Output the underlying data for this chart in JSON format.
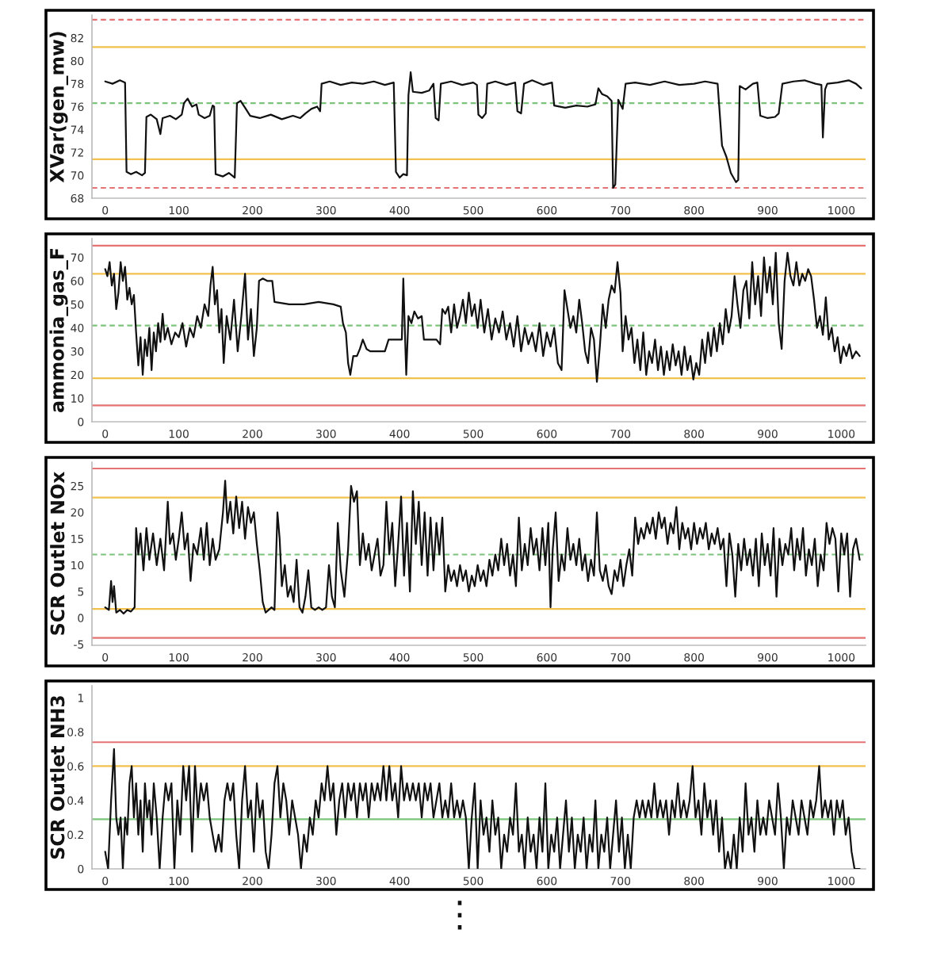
{
  "chart_data": [
    {
      "type": "line",
      "ylabel": "XVar(gen_mw)",
      "color": "#111111",
      "xlim": [
        -18,
        1033
      ],
      "ylim": [
        68,
        84
      ],
      "xticks": [
        0,
        100,
        200,
        300,
        400,
        500,
        600,
        700,
        800,
        900,
        1000
      ],
      "yticks": [
        68,
        70,
        72,
        74,
        76,
        78,
        80,
        82
      ],
      "ref_lines": [
        {
          "axis": "y",
          "value": 83.6,
          "color": "#e57373",
          "line_style": "dashed"
        },
        {
          "axis": "y",
          "value": 81.2,
          "color": "#f2c14e",
          "line_style": "solid"
        },
        {
          "axis": "y",
          "value": 76.3,
          "color": "#7cc47c",
          "line_style": "dashed"
        },
        {
          "axis": "y",
          "value": 71.4,
          "color": "#f2c14e",
          "line_style": "solid"
        },
        {
          "axis": "y",
          "value": 68.9,
          "color": "#e57373",
          "line_style": "dashed"
        }
      ],
      "x": [
        0,
        10,
        20,
        27,
        29,
        35,
        42,
        50,
        54,
        56,
        62,
        70,
        75,
        78,
        88,
        96,
        104,
        107,
        112,
        118,
        124,
        127,
        135,
        142,
        146,
        148,
        150,
        160,
        168,
        176,
        179,
        184,
        190,
        197,
        210,
        225,
        240,
        255,
        265,
        272,
        280,
        288,
        292,
        294,
        305,
        320,
        335,
        350,
        365,
        380,
        392,
        395,
        400,
        405,
        410,
        412,
        415,
        418,
        430,
        440,
        446,
        449,
        453,
        456,
        470,
        485,
        500,
        505,
        507,
        512,
        517,
        519,
        530,
        545,
        557,
        560,
        565,
        569,
        580,
        595,
        607,
        610,
        625,
        640,
        655,
        666,
        670,
        675,
        682,
        688,
        690,
        693,
        697,
        703,
        707,
        720,
        740,
        760,
        780,
        800,
        815,
        832,
        838,
        844,
        850,
        857,
        860,
        862,
        870,
        880,
        886,
        890,
        900,
        910,
        915,
        920,
        935,
        950,
        965,
        973,
        975,
        978,
        981,
        995,
        1010,
        1020,
        1027
      ],
      "values": [
        78.2,
        78.0,
        78.3,
        78.1,
        70.3,
        70.1,
        70.3,
        70.0,
        70.2,
        75.1,
        75.3,
        74.9,
        73.6,
        75.0,
        75.2,
        74.9,
        75.3,
        76.3,
        76.7,
        76.0,
        76.2,
        75.3,
        75.0,
        75.2,
        76.1,
        76.0,
        70.1,
        69.9,
        70.2,
        69.8,
        76.3,
        76.5,
        75.9,
        75.2,
        75.0,
        75.3,
        74.9,
        75.2,
        75.0,
        75.4,
        75.8,
        76.0,
        75.6,
        78.0,
        78.2,
        77.9,
        78.1,
        78.0,
        78.2,
        77.9,
        78.1,
        70.3,
        69.8,
        70.1,
        70.0,
        77.0,
        79.0,
        77.3,
        77.2,
        77.4,
        78.0,
        75.0,
        74.8,
        78.0,
        78.2,
        77.9,
        78.1,
        77.9,
        75.3,
        75.0,
        75.4,
        78.0,
        78.2,
        77.9,
        78.1,
        75.6,
        75.4,
        78.0,
        78.3,
        77.9,
        78.1,
        76.1,
        75.9,
        76.1,
        76.0,
        76.2,
        77.6,
        77.1,
        76.9,
        76.5,
        68.9,
        69.2,
        76.6,
        75.8,
        78.0,
        78.1,
        77.9,
        78.2,
        77.9,
        78.0,
        78.2,
        78.0,
        72.6,
        71.6,
        70.2,
        69.4,
        69.6,
        77.8,
        77.5,
        78.0,
        78.1,
        75.2,
        75.0,
        75.1,
        75.4,
        78.0,
        78.2,
        78.3,
        78.0,
        77.9,
        73.3,
        77.5,
        78.0,
        78.1,
        78.3,
        78.0,
        77.6
      ]
    },
    {
      "type": "line",
      "ylabel": "ammonia_gas_F",
      "color": "#111111",
      "xlim": [
        -18,
        1033
      ],
      "ylim": [
        0,
        78
      ],
      "xticks": [
        0,
        100,
        200,
        300,
        400,
        500,
        600,
        700,
        800,
        900,
        1000
      ],
      "yticks": [
        0,
        10,
        20,
        30,
        40,
        50,
        60,
        70
      ],
      "ref_lines": [
        {
          "axis": "y",
          "value": 75,
          "color": "#e57373",
          "line_style": "solid"
        },
        {
          "axis": "y",
          "value": 63,
          "color": "#f2c14e",
          "line_style": "solid"
        },
        {
          "axis": "y",
          "value": 41,
          "color": "#7cc47c",
          "line_style": "dashed"
        },
        {
          "axis": "y",
          "value": 18.5,
          "color": "#f2c14e",
          "line_style": "solid"
        },
        {
          "axis": "y",
          "value": 7,
          "color": "#e57373",
          "line_style": "solid"
        }
      ],
      "x": [
        0,
        3,
        6,
        9,
        12,
        15,
        18,
        21,
        24,
        27,
        30,
        33,
        36,
        39,
        42,
        45,
        48,
        51,
        54,
        57,
        60,
        63,
        66,
        69,
        72,
        75,
        78,
        81,
        85,
        90,
        95,
        100,
        105,
        110,
        115,
        120,
        125,
        130,
        135,
        140,
        143,
        146,
        149,
        152,
        155,
        158,
        161,
        165,
        170,
        175,
        180,
        185,
        190,
        194,
        198,
        202,
        206,
        209,
        214,
        220,
        227,
        230,
        250,
        270,
        290,
        310,
        320,
        323,
        327,
        330,
        333,
        337,
        342,
        346,
        350,
        355,
        360,
        380,
        385,
        403,
        405,
        407,
        409,
        412,
        416,
        420,
        425,
        430,
        433,
        450,
        455,
        458,
        462,
        466,
        470,
        474,
        478,
        482,
        486,
        490,
        494,
        498,
        502,
        506,
        510,
        515,
        520,
        525,
        530,
        535,
        540,
        545,
        550,
        555,
        560,
        565,
        570,
        575,
        580,
        585,
        590,
        595,
        600,
        605,
        610,
        615,
        620,
        624,
        628,
        632,
        636,
        640,
        644,
        648,
        652,
        656,
        660,
        664,
        668,
        672,
        676,
        680,
        684,
        688,
        692,
        696,
        700,
        703,
        707,
        711,
        715,
        719,
        723,
        727,
        731,
        735,
        739,
        743,
        747,
        751,
        755,
        759,
        763,
        767,
        771,
        775,
        779,
        783,
        787,
        791,
        795,
        799,
        803,
        807,
        811,
        815,
        819,
        823,
        827,
        831,
        835,
        839,
        843,
        847,
        851,
        855,
        859,
        863,
        867,
        871,
        875,
        879,
        883,
        887,
        891,
        895,
        899,
        903,
        907,
        911,
        915,
        919,
        923,
        927,
        931,
        935,
        939,
        943,
        947,
        951,
        955,
        959,
        963,
        967,
        971,
        975,
        979,
        983,
        987,
        991,
        995,
        999,
        1003,
        1007,
        1011,
        1015,
        1020,
        1025
      ],
      "values": [
        65,
        62,
        68,
        58,
        63,
        48,
        55,
        68,
        60,
        66,
        52,
        57,
        50,
        54,
        38,
        24,
        36,
        20,
        35,
        28,
        40,
        22,
        38,
        30,
        42,
        34,
        46,
        35,
        40,
        33,
        38,
        36,
        42,
        32,
        40,
        36,
        45,
        40,
        50,
        45,
        58,
        66,
        50,
        56,
        38,
        48,
        25,
        45,
        35,
        52,
        30,
        45,
        63,
        35,
        48,
        28,
        40,
        60,
        61,
        60,
        60,
        51,
        50,
        50,
        51,
        50,
        49,
        42,
        38,
        25,
        20,
        28,
        28,
        31,
        35,
        31,
        30,
        30,
        35,
        35,
        61,
        40,
        20,
        45,
        42,
        47,
        44,
        45,
        35,
        35,
        33,
        48,
        46,
        49,
        38,
        50,
        40,
        45,
        52,
        42,
        55,
        45,
        50,
        40,
        52,
        38,
        48,
        35,
        44,
        38,
        47,
        35,
        42,
        32,
        45,
        30,
        40,
        33,
        38,
        30,
        42,
        28,
        38,
        32,
        40,
        25,
        22,
        56,
        48,
        40,
        45,
        38,
        52,
        42,
        30,
        25,
        40,
        35,
        17,
        32,
        50,
        40,
        52,
        58,
        55,
        68,
        55,
        30,
        45,
        35,
        40,
        25,
        35,
        22,
        38,
        20,
        30,
        25,
        35,
        22,
        32,
        20,
        30,
        22,
        33,
        24,
        30,
        20,
        32,
        22,
        28,
        18,
        25,
        20,
        35,
        25,
        38,
        28,
        40,
        30,
        42,
        33,
        48,
        38,
        45,
        62,
        50,
        40,
        56,
        60,
        44,
        68,
        50,
        62,
        45,
        70,
        55,
        66,
        50,
        72,
        42,
        31,
        60,
        72,
        62,
        58,
        68,
        58,
        63,
        60,
        65,
        62,
        52,
        40,
        45,
        37,
        53,
        35,
        40,
        30,
        36,
        25,
        32,
        28,
        33,
        27,
        30,
        28
      ]
    },
    {
      "type": "line",
      "ylabel": "SCR Outlet NOx",
      "color": "#111111",
      "xlim": [
        -18,
        1033
      ],
      "ylim": [
        -5.2,
        29.5
      ],
      "xticks": [
        0,
        100,
        200,
        300,
        400,
        500,
        600,
        700,
        800,
        900,
        1000
      ],
      "yticks": [
        -5,
        0,
        5,
        10,
        15,
        20,
        25
      ],
      "ref_lines": [
        {
          "axis": "y",
          "value": 28.3,
          "color": "#e57373",
          "line_style": "solid"
        },
        {
          "axis": "y",
          "value": 22.8,
          "color": "#f2c14e",
          "line_style": "solid"
        },
        {
          "axis": "y",
          "value": 12,
          "color": "#7cc47c",
          "line_style": "dashed"
        },
        {
          "axis": "y",
          "value": 1.7,
          "color": "#f2c14e",
          "line_style": "solid"
        },
        {
          "axis": "y",
          "value": -3.8,
          "color": "#e57373",
          "line_style": "solid"
        }
      ],
      "x": [
        0,
        5,
        8,
        10,
        12,
        15,
        20,
        25,
        30,
        35,
        40,
        42,
        45,
        48,
        52,
        56,
        60,
        65,
        70,
        75,
        80,
        85,
        88,
        92,
        96,
        100,
        104,
        108,
        112,
        116,
        120,
        125,
        130,
        134,
        138,
        142,
        146,
        150,
        155,
        160,
        163,
        166,
        170,
        174,
        178,
        182,
        186,
        190,
        194,
        198,
        202,
        206,
        210,
        214,
        218,
        222,
        226,
        230,
        234,
        237,
        240,
        244,
        248,
        252,
        256,
        260,
        264,
        268,
        272,
        276,
        280,
        285,
        290,
        295,
        300,
        304,
        308,
        312,
        316,
        320,
        325,
        330,
        334,
        338,
        342,
        346,
        350,
        354,
        358,
        362,
        366,
        370,
        374,
        378,
        382,
        386,
        390,
        394,
        398,
        402,
        406,
        410,
        414,
        418,
        422,
        426,
        430,
        434,
        438,
        442,
        446,
        450,
        454,
        458,
        462,
        466,
        470,
        474,
        478,
        482,
        486,
        490,
        494,
        498,
        502,
        506,
        510,
        514,
        518,
        522,
        526,
        530,
        534,
        538,
        542,
        546,
        550,
        554,
        558,
        562,
        566,
        570,
        574,
        578,
        582,
        586,
        590,
        594,
        598,
        602,
        605,
        608,
        612,
        616,
        620,
        624,
        628,
        632,
        636,
        640,
        644,
        648,
        652,
        656,
        660,
        664,
        668,
        672,
        676,
        680,
        684,
        688,
        692,
        696,
        700,
        704,
        708,
        712,
        716,
        720,
        724,
        728,
        732,
        736,
        740,
        744,
        748,
        752,
        756,
        760,
        764,
        768,
        772,
        776,
        780,
        784,
        788,
        792,
        796,
        800,
        804,
        808,
        812,
        816,
        820,
        824,
        828,
        832,
        836,
        840,
        844,
        848,
        852,
        856,
        860,
        864,
        868,
        872,
        876,
        880,
        884,
        888,
        892,
        896,
        900,
        904,
        908,
        912,
        916,
        920,
        924,
        928,
        932,
        936,
        940,
        944,
        948,
        952,
        956,
        960,
        964,
        968,
        972,
        976,
        980,
        984,
        988,
        992,
        996,
        1000,
        1004,
        1008,
        1012,
        1016,
        1020,
        1025
      ],
      "values": [
        2,
        1.5,
        7,
        3,
        6,
        1,
        1.5,
        0.8,
        1.5,
        1.2,
        2,
        17,
        12,
        16,
        9,
        17,
        11,
        16,
        10,
        15,
        9,
        22,
        14,
        16,
        11,
        15,
        20,
        13,
        16,
        7,
        14,
        12,
        17,
        11,
        18,
        10,
        15,
        11,
        13,
        20,
        26,
        18,
        22,
        16,
        23,
        17,
        22,
        15,
        21,
        18,
        20,
        14,
        9,
        3,
        1,
        1.5,
        2,
        1.5,
        20,
        15,
        6,
        10,
        4,
        6,
        3,
        11,
        2,
        1,
        4,
        9,
        2,
        1.5,
        2,
        1.5,
        2,
        10,
        4,
        2,
        18,
        9,
        4,
        13,
        25,
        22,
        24,
        10,
        16,
        11,
        14,
        9,
        12,
        15,
        8,
        10,
        22,
        12,
        18,
        6,
        14,
        23,
        8,
        18,
        5,
        24,
        14,
        22,
        10,
        20,
        8,
        19,
        9,
        18,
        12,
        19,
        5,
        10,
        7,
        9,
        6,
        10,
        7,
        9,
        5,
        8,
        6,
        10,
        7,
        9,
        6,
        11,
        8,
        12,
        9,
        15,
        10,
        14,
        8,
        12,
        6,
        19,
        9,
        14,
        10,
        17,
        12,
        15,
        9,
        17,
        10,
        18,
        2,
        13,
        20,
        7,
        12,
        9,
        17,
        11,
        14,
        10,
        15,
        9,
        12,
        7,
        11,
        8,
        20,
        9,
        7,
        10,
        6,
        4.5,
        9,
        7,
        11,
        6,
        10,
        13,
        8,
        19,
        14,
        17,
        15,
        18,
        16,
        19,
        15,
        20,
        17,
        19,
        14,
        18,
        16,
        21,
        13,
        18,
        15,
        17,
        13,
        18,
        14,
        17,
        15,
        18,
        13,
        16,
        14,
        17,
        13,
        15,
        6,
        16,
        12,
        4,
        14,
        9,
        15,
        10,
        13,
        8,
        15,
        6,
        16,
        10,
        14,
        8,
        17,
        4,
        15,
        10,
        14,
        12,
        17,
        9,
        15,
        11,
        17,
        8,
        13,
        10,
        15,
        6,
        12,
        9,
        18,
        14,
        17,
        15,
        5,
        16,
        12,
        16,
        4,
        13,
        15,
        11
      ]
    },
    {
      "type": "line",
      "ylabel": "SCR Outlet NH3",
      "color": "#111111",
      "xlim": [
        -18,
        1033
      ],
      "ylim": [
        0,
        1.07
      ],
      "xticks": [
        0,
        100,
        200,
        300,
        400,
        500,
        600,
        700,
        800,
        900,
        1000
      ],
      "yticks": [
        0,
        0.2,
        0.4,
        0.6,
        0.8,
        1
      ],
      "ref_lines": [
        {
          "axis": "y",
          "value": 0.74,
          "color": "#e57373",
          "line_style": "solid"
        },
        {
          "axis": "y",
          "value": 0.6,
          "color": "#f2c14e",
          "line_style": "solid"
        },
        {
          "axis": "y",
          "value": 0.29,
          "color": "#7cc47c",
          "line_style": "solid"
        }
      ],
      "annotations": [
        "⋮"
      ],
      "x": [
        0,
        4,
        8,
        12,
        15,
        18,
        21,
        24,
        27,
        30,
        33,
        36,
        39,
        42,
        45,
        48,
        51,
        54,
        57,
        60,
        63,
        66,
        70,
        74,
        78,
        82,
        86,
        90,
        94,
        98,
        102,
        106,
        110,
        114,
        118,
        122,
        126,
        130,
        134,
        138,
        142,
        146,
        150,
        154,
        158,
        162,
        166,
        170,
        174,
        178,
        182,
        186,
        190,
        194,
        198,
        202,
        206,
        210,
        214,
        218,
        222,
        226,
        230,
        234,
        238,
        242,
        246,
        250,
        254,
        258,
        262,
        266,
        270,
        274,
        278,
        282,
        286,
        290,
        294,
        298,
        302,
        306,
        310,
        314,
        318,
        322,
        326,
        330,
        334,
        338,
        342,
        346,
        350,
        354,
        358,
        362,
        366,
        370,
        374,
        378,
        382,
        386,
        390,
        394,
        398,
        402,
        406,
        410,
        414,
        418,
        422,
        426,
        430,
        434,
        438,
        442,
        446,
        450,
        454,
        458,
        462,
        466,
        470,
        474,
        478,
        482,
        486,
        490,
        494,
        498,
        502,
        506,
        510,
        514,
        518,
        522,
        526,
        530,
        534,
        538,
        542,
        546,
        550,
        554,
        558,
        562,
        566,
        570,
        574,
        578,
        582,
        586,
        590,
        594,
        598,
        602,
        606,
        610,
        614,
        618,
        622,
        626,
        630,
        634,
        638,
        642,
        646,
        650,
        654,
        658,
        662,
        666,
        670,
        674,
        678,
        682,
        686,
        690,
        694,
        698,
        702,
        706,
        710,
        714,
        718,
        722,
        726,
        730,
        734,
        738,
        742,
        746,
        750,
        754,
        758,
        762,
        766,
        770,
        774,
        778,
        782,
        786,
        790,
        794,
        798,
        802,
        806,
        810,
        814,
        818,
        822,
        826,
        830,
        834,
        838,
        842,
        846,
        850,
        854,
        858,
        862,
        866,
        870,
        874,
        878,
        882,
        886,
        890,
        894,
        898,
        902,
        906,
        910,
        914,
        918,
        922,
        926,
        930,
        934,
        938,
        942,
        946,
        950,
        954,
        958,
        962,
        966,
        970,
        974,
        978,
        982,
        986,
        990,
        994,
        998,
        1002,
        1006,
        1010,
        1014,
        1018,
        1025
      ],
      "values": [
        0.1,
        0,
        0.4,
        0.7,
        0.3,
        0.2,
        0.3,
        0,
        0.3,
        0.2,
        0.5,
        0.6,
        0.3,
        0.5,
        0.2,
        0.4,
        0.1,
        0.5,
        0.3,
        0.4,
        0.2,
        0.5,
        0.3,
        0,
        0.3,
        0.5,
        0.4,
        0.5,
        0,
        0.4,
        0.2,
        0.6,
        0.4,
        0.6,
        0.1,
        0.6,
        0.3,
        0.5,
        0.4,
        0.5,
        0.3,
        0.2,
        0.1,
        0.2,
        0.1,
        0.4,
        0.5,
        0.4,
        0.5,
        0.2,
        0,
        0.4,
        0.6,
        0.3,
        0.4,
        0.1,
        0.5,
        0.3,
        0.4,
        0.1,
        0,
        0.2,
        0.5,
        0.6,
        0.3,
        0.5,
        0.4,
        0.2,
        0.4,
        0.3,
        0.2,
        0,
        0.2,
        0.1,
        0.3,
        0.2,
        0.4,
        0.3,
        0.5,
        0.4,
        0.6,
        0.4,
        0.5,
        0.2,
        0.4,
        0.5,
        0.3,
        0.5,
        0.4,
        0.5,
        0.3,
        0.5,
        0.4,
        0.5,
        0.3,
        0.5,
        0.4,
        0.5,
        0.4,
        0.6,
        0.4,
        0.6,
        0.4,
        0.5,
        0.3,
        0.6,
        0.4,
        0.5,
        0.4,
        0.5,
        0.4,
        0.5,
        0.3,
        0.5,
        0.4,
        0.5,
        0.3,
        0.4,
        0.5,
        0.3,
        0.4,
        0.3,
        0.5,
        0.3,
        0.4,
        0.3,
        0.4,
        0.3,
        0,
        0.3,
        0.5,
        0,
        0.4,
        0.2,
        0.3,
        0.1,
        0.4,
        0.2,
        0.3,
        0,
        0.2,
        0.1,
        0.3,
        0.2,
        0.5,
        0.1,
        0.2,
        0,
        0.3,
        0.1,
        0.2,
        0,
        0.3,
        0.1,
        0.5,
        0,
        0.2,
        0.1,
        0.3,
        0,
        0.2,
        0.4,
        0.1,
        0.3,
        0,
        0.2,
        0.1,
        0.3,
        0,
        0.2,
        0.1,
        0.4,
        0,
        0.2,
        0.1,
        0.3,
        0,
        0.2,
        0.4,
        0.1,
        0.3,
        0,
        0.2,
        0,
        0.3,
        0.4,
        0.3,
        0.4,
        0.3,
        0.4,
        0.3,
        0.5,
        0.3,
        0.4,
        0.3,
        0.4,
        0.2,
        0.4,
        0.3,
        0.5,
        0.3,
        0.4,
        0.3,
        0.4,
        0.6,
        0.3,
        0.4,
        0.2,
        0.5,
        0.3,
        0.4,
        0.2,
        0.4,
        0.1,
        0.3,
        0,
        0.1,
        0,
        0.2,
        0,
        0.3,
        0.1,
        0.5,
        0.2,
        0.3,
        0.1,
        0.4,
        0.2,
        0.3,
        0.2,
        0.4,
        0.3,
        0.2,
        0.5,
        0.3,
        0,
        0.3,
        0.2,
        0.4,
        0.3,
        0.2,
        0.4,
        0.3,
        0.2,
        0.4,
        0.3,
        0.4,
        0.6,
        0.3,
        0.4,
        0.3,
        0.4,
        0.2,
        0.4,
        0.3,
        0.4,
        0.2,
        0.3,
        0.1,
        0,
        0
      ]
    }
  ]
}
